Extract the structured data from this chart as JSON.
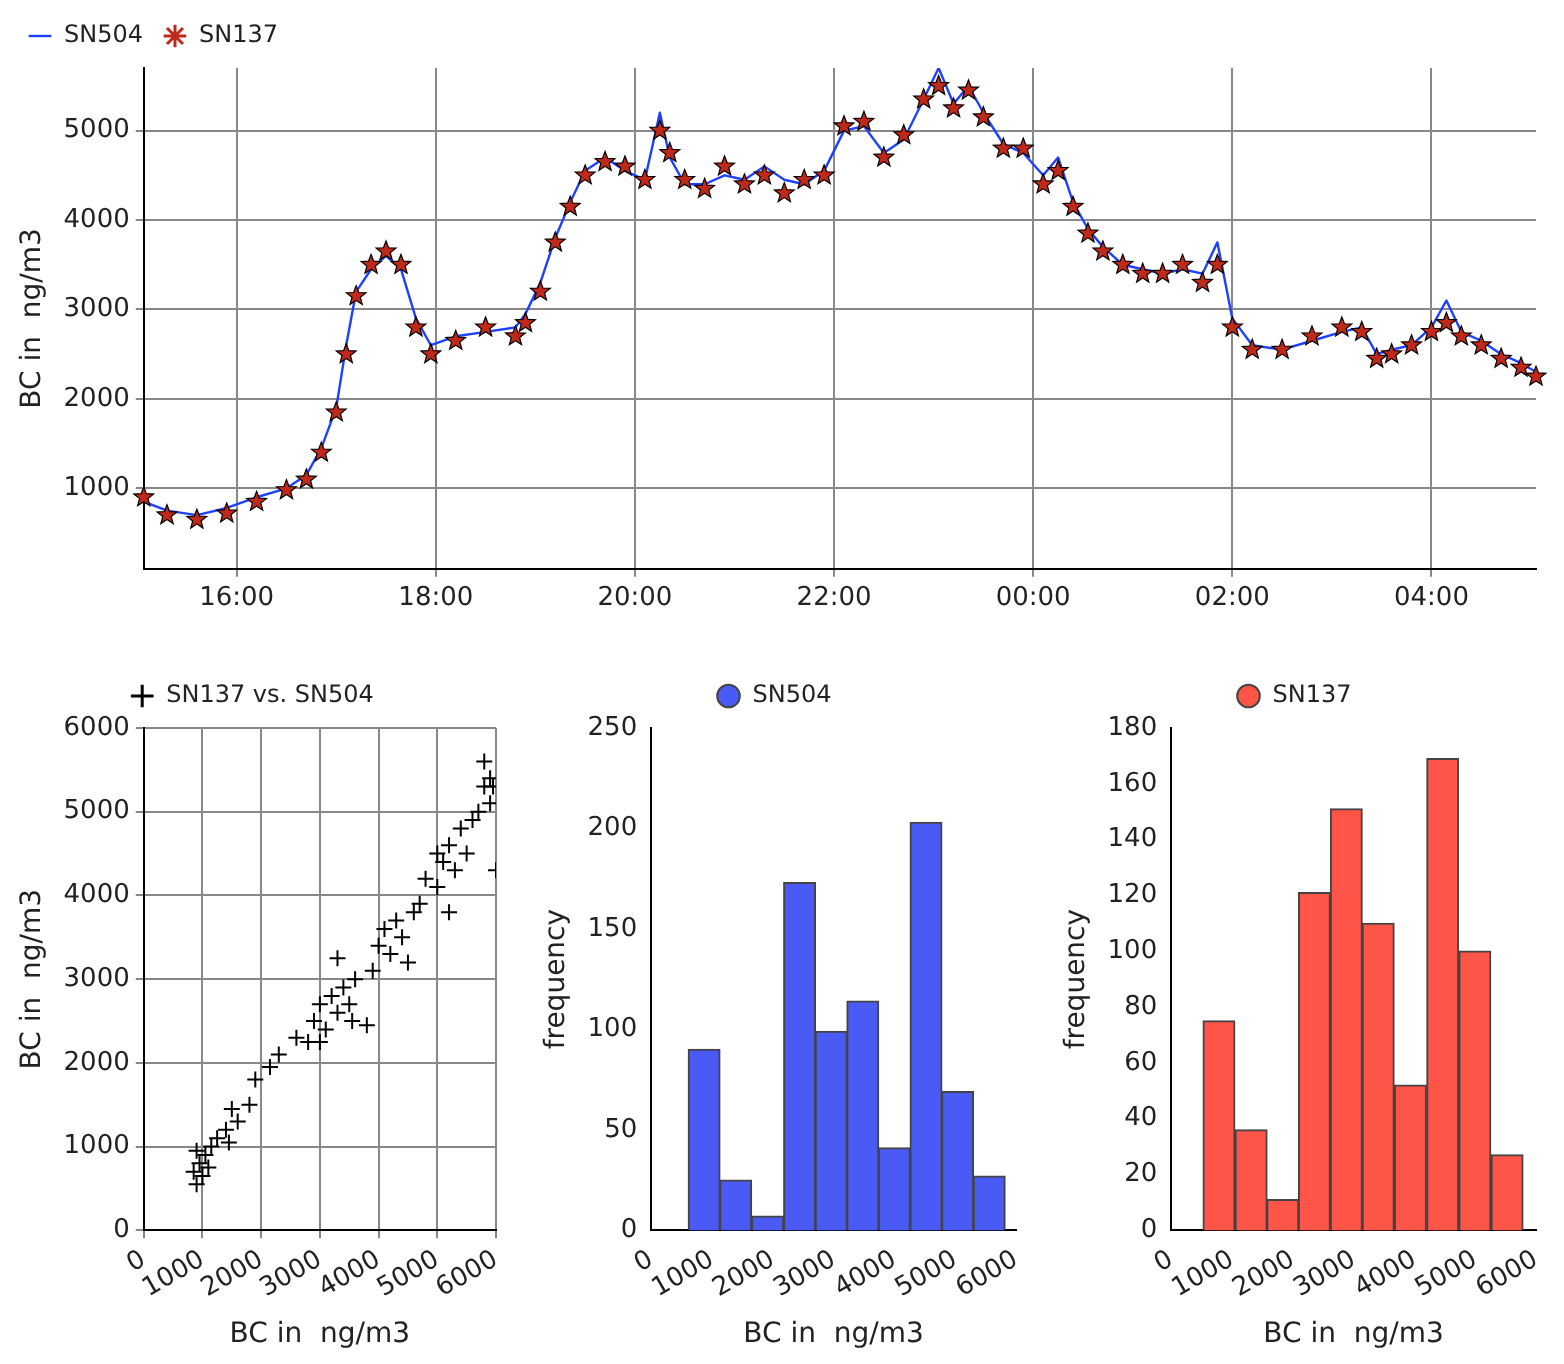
{
  "chart_data": [
    {
      "type": "line",
      "ylabel": "BC in  ng/m3",
      "xlim": [
        "2000-01-01T15:04",
        "2000-01-02T05:03"
      ],
      "ylim": [
        100,
        5700
      ],
      "xticks": [
        {
          "value": "2000-01-01T16:00",
          "label": "16:00"
        },
        {
          "value": "2000-01-01T18:00",
          "label": "18:00"
        },
        {
          "value": "2000-01-01T20:00",
          "label": "20:00"
        },
        {
          "value": "2000-01-01T22:00",
          "label": "22:00"
        },
        {
          "value": "2000-01-02T00:00",
          "label": "00:00"
        },
        {
          "value": "2000-01-02T02:00",
          "label": "02:00"
        },
        {
          "value": "2000-01-02T04:00",
          "label": "04:00"
        }
      ],
      "yticks": [
        1000,
        2000,
        3000,
        4000,
        5000
      ],
      "grid": true,
      "legend": "top left",
      "x": [
        "2000-01-01T15:04",
        "2000-01-01T15:18",
        "2000-01-01T15:36",
        "2000-01-01T15:54",
        "2000-01-01T16:12",
        "2000-01-01T16:30",
        "2000-01-01T16:42",
        "2000-01-01T16:51",
        "2000-01-01T17:00",
        "2000-01-01T17:06",
        "2000-01-01T17:12",
        "2000-01-01T17:21",
        "2000-01-01T17:30",
        "2000-01-01T17:39",
        "2000-01-01T17:48",
        "2000-01-01T17:57",
        "2000-01-01T18:12",
        "2000-01-01T18:30",
        "2000-01-01T18:48",
        "2000-01-01T18:54",
        "2000-01-01T19:03",
        "2000-01-01T19:12",
        "2000-01-01T19:21",
        "2000-01-01T19:30",
        "2000-01-01T19:42",
        "2000-01-01T19:54",
        "2000-01-01T20:06",
        "2000-01-01T20:15",
        "2000-01-01T20:21",
        "2000-01-01T20:30",
        "2000-01-01T20:42",
        "2000-01-01T20:54",
        "2000-01-01T21:06",
        "2000-01-01T21:18",
        "2000-01-01T21:30",
        "2000-01-01T21:42",
        "2000-01-01T21:54",
        "2000-01-01T22:06",
        "2000-01-01T22:18",
        "2000-01-01T22:30",
        "2000-01-01T22:42",
        "2000-01-01T22:54",
        "2000-01-01T23:03",
        "2000-01-01T23:12",
        "2000-01-01T23:21",
        "2000-01-01T23:30",
        "2000-01-01T23:42",
        "2000-01-01T23:54",
        "2000-01-02T00:06",
        "2000-01-02T00:15",
        "2000-01-02T00:24",
        "2000-01-02T00:33",
        "2000-01-02T00:42",
        "2000-01-02T00:54",
        "2000-01-02T01:06",
        "2000-01-02T01:18",
        "2000-01-02T01:30",
        "2000-01-02T01:42",
        "2000-01-02T01:51",
        "2000-01-02T02:00",
        "2000-01-02T02:12",
        "2000-01-02T02:30",
        "2000-01-02T02:48",
        "2000-01-02T03:06",
        "2000-01-02T03:18",
        "2000-01-02T03:27",
        "2000-01-02T03:36",
        "2000-01-02T03:48",
        "2000-01-02T04:00",
        "2000-01-02T04:09",
        "2000-01-02T04:18",
        "2000-01-02T04:30",
        "2000-01-02T04:42",
        "2000-01-02T04:54",
        "2000-01-02T05:03"
      ],
      "series": [
        {
          "name": "SN504",
          "type": "line",
          "color": "#2040ff",
          "marker": "none",
          "values": [
            850,
            750,
            700,
            780,
            900,
            1000,
            1150,
            1450,
            1900,
            2600,
            3200,
            3450,
            3600,
            3450,
            2900,
            2600,
            2700,
            2750,
            2800,
            2950,
            3300,
            3800,
            4200,
            4550,
            4700,
            4550,
            4450,
            5200,
            4700,
            4400,
            4400,
            4500,
            4450,
            4600,
            4450,
            4400,
            4550,
            5000,
            5050,
            4750,
            4900,
            5350,
            5700,
            5300,
            5500,
            5200,
            4850,
            4750,
            4500,
            4700,
            4200,
            3900,
            3700,
            3500,
            3450,
            3400,
            3450,
            3400,
            3750,
            2900,
            2600,
            2550,
            2650,
            2750,
            2800,
            2500,
            2550,
            2600,
            2800,
            3100,
            2750,
            2650,
            2500,
            2400,
            2300
          ]
        },
        {
          "name": "SN137",
          "type": "scatter",
          "color": "#c0281a",
          "marker": "star",
          "values": [
            900,
            700,
            650,
            720,
            850,
            980,
            1100,
            1400,
            1850,
            2500,
            3150,
            3500,
            3650,
            3500,
            2800,
            2500,
            2650,
            2800,
            2700,
            2850,
            3200,
            3750,
            4150,
            4500,
            4650,
            4600,
            4450,
            5000,
            4750,
            4450,
            4350,
            4600,
            4400,
            4500,
            4300,
            4450,
            4500,
            5050,
            5100,
            4700,
            4950,
            5350,
            5500,
            5250,
            5450,
            5150,
            4800,
            4800,
            4400,
            4550,
            4150,
            3850,
            3650,
            3500,
            3400,
            3400,
            3500,
            3300,
            3500,
            2800,
            2550,
            2550,
            2700,
            2800,
            2750,
            2450,
            2500,
            2600,
            2750,
            2850,
            2700,
            2600,
            2450,
            2350,
            2250
          ]
        }
      ]
    },
    {
      "type": "scatter",
      "xlabel": "BC in  ng/m3",
      "ylabel": "BC in  ng/m3",
      "xlim": [
        0,
        6000
      ],
      "ylim": [
        0,
        6000
      ],
      "xticks": [
        0,
        1000,
        2000,
        3000,
        4000,
        5000,
        6000
      ],
      "yticks": [
        0,
        1000,
        2000,
        3000,
        4000,
        5000,
        6000
      ],
      "grid": true,
      "legend": "top",
      "marker": "cross",
      "x": [
        850,
        900,
        950,
        1000,
        1050,
        900,
        1100,
        1150,
        1250,
        1400,
        1500,
        1600,
        1450,
        1800,
        1900,
        2150,
        2300,
        2600,
        2800,
        2900,
        3000,
        3100,
        3200,
        3300,
        3400,
        3500,
        3600,
        3550,
        3800,
        3300,
        3000,
        3900,
        4000,
        4100,
        4200,
        4300,
        4400,
        4500,
        4600,
        4700,
        4800,
        5000,
        5100,
        5200,
        5300,
        5400,
        5000,
        5200,
        5500,
        5600,
        5700,
        5900,
        6000,
        5800,
        5900,
        5950,
        5800
      ],
      "series": [
        {
          "name": "SN137 vs. SN504",
          "color": "#000000",
          "values": [
            700,
            550,
            800,
            650,
            900,
            950,
            750,
            1000,
            1100,
            1200,
            1450,
            1300,
            1050,
            1500,
            1800,
            1950,
            2100,
            2300,
            2250,
            2500,
            2700,
            2400,
            2800,
            2600,
            2900,
            2700,
            3000,
            2500,
            2450,
            3250,
            2250,
            3100,
            3400,
            3600,
            3300,
            3700,
            3500,
            3200,
            3800,
            3900,
            4200,
            4100,
            4400,
            4600,
            4300,
            4800,
            4500,
            3800,
            4500,
            4900,
            5000,
            5100,
            4300,
            5300,
            5400,
            5300,
            5600
          ]
        }
      ]
    },
    {
      "type": "histogram",
      "xlabel": "BC in  ng/m3",
      "ylabel": "frequency",
      "xlim": [
        0,
        6000
      ],
      "ylim": [
        0,
        250
      ],
      "xticks": [
        0,
        1000,
        2000,
        3000,
        4000,
        5000,
        6000
      ],
      "yticks": [
        0,
        50,
        100,
        150,
        200,
        250
      ],
      "legend": "top",
      "bins": [
        610,
        1130,
        1650,
        2180,
        2700,
        3220,
        3740,
        4260,
        4780,
        5300,
        5820
      ],
      "series": [
        {
          "name": "SN504",
          "color": "#4a5af5",
          "values": [
            90,
            25,
            7,
            173,
            99,
            114,
            41,
            203,
            69,
            27
          ]
        }
      ]
    },
    {
      "type": "histogram",
      "xlabel": "BC in  ng/m3",
      "ylabel": "frequency",
      "xlim": [
        0,
        6000
      ],
      "ylim": [
        0,
        180
      ],
      "xticks": [
        0,
        1000,
        2000,
        3000,
        4000,
        5000,
        6000
      ],
      "yticks": [
        0,
        20,
        40,
        60,
        80,
        100,
        120,
        140,
        160,
        180
      ],
      "legend": "top",
      "bins": [
        520,
        1050,
        1580,
        2090,
        2620,
        3140,
        3670,
        4200,
        4730,
        5260,
        5790
      ],
      "series": [
        {
          "name": "SN137",
          "color": "#ff5548",
          "values": [
            75,
            36,
            11,
            121,
            151,
            110,
            52,
            169,
            100,
            27
          ]
        }
      ]
    }
  ]
}
